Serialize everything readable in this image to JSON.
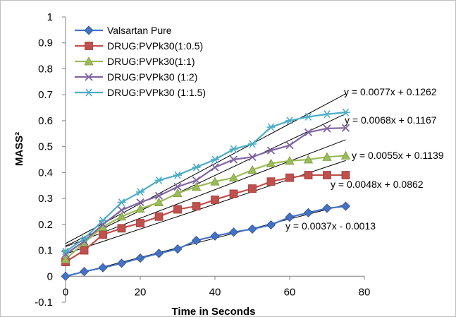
{
  "chart_data": {
    "type": "line",
    "xlabel": "Time in Seconds",
    "ylabel": "MASS²",
    "xlim": [
      0,
      80
    ],
    "ylim": [
      -0.1,
      1
    ],
    "xticks": [
      0,
      20,
      40,
      60,
      80
    ],
    "yticks": [
      -0.1,
      0,
      0.1,
      0.2,
      0.3,
      0.4,
      0.5,
      0.6,
      0.7,
      0.8,
      0.9,
      1
    ],
    "grid": false,
    "legend_position": "top-left",
    "x": [
      0,
      5,
      10,
      15,
      20,
      25,
      30,
      35,
      40,
      45,
      50,
      55,
      60,
      65,
      70,
      75
    ],
    "series": [
      {
        "name": "Valsartan Pure",
        "color": "#4472c4",
        "marker": "diamond",
        "values": [
          0.0,
          0.018,
          0.033,
          0.05,
          0.07,
          0.088,
          0.105,
          0.138,
          0.155,
          0.17,
          0.182,
          0.198,
          0.228,
          0.245,
          0.262,
          0.27
        ],
        "trendline": {
          "slope": 0.0037,
          "intercept": -0.0013,
          "equation": "y = 0.0037x - 0.0013"
        }
      },
      {
        "name": "DRUG:PVPk30(1:0.5)",
        "color": "#c0504d",
        "marker": "square",
        "values": [
          0.055,
          0.1,
          0.16,
          0.185,
          0.205,
          0.23,
          0.258,
          0.27,
          0.295,
          0.318,
          0.338,
          0.365,
          0.38,
          0.39,
          0.39,
          0.39
        ],
        "trendline": {
          "slope": 0.0048,
          "intercept": 0.0862,
          "equation": "y = 0.0048x + 0.0862"
        }
      },
      {
        "name": "DRUG:PVPk30(1:1)",
        "color": "#9bbb59",
        "marker": "triangle",
        "values": [
          0.065,
          0.13,
          0.19,
          0.23,
          0.26,
          0.285,
          0.32,
          0.345,
          0.365,
          0.38,
          0.41,
          0.435,
          0.445,
          0.45,
          0.46,
          0.465
        ],
        "trendline": {
          "slope": 0.0055,
          "intercept": 0.1139,
          "equation": "y = 0.0055x + 0.1139"
        }
      },
      {
        "name": "DRUG:PVPk30 (1:2)",
        "color": "#8064a2",
        "marker": "x",
        "values": [
          0.085,
          0.135,
          0.2,
          0.255,
          0.285,
          0.31,
          0.345,
          0.37,
          0.42,
          0.45,
          0.46,
          0.485,
          0.505,
          0.555,
          0.57,
          0.572
        ],
        "trendline": {
          "slope": 0.0068,
          "intercept": 0.1167,
          "equation": "y = 0.0068x + 0.1167"
        }
      },
      {
        "name": "DRUG:PVPk30 (1:1.5)",
        "color": "#4bacc6",
        "marker": "star",
        "values": [
          0.095,
          0.145,
          0.215,
          0.285,
          0.325,
          0.37,
          0.39,
          0.42,
          0.45,
          0.49,
          0.51,
          0.575,
          0.6,
          0.615,
          0.625,
          0.632
        ],
        "trendline": {
          "slope": 0.0077,
          "intercept": 0.1262,
          "equation": "y = 0.0077x + 0.1262"
        }
      }
    ]
  }
}
